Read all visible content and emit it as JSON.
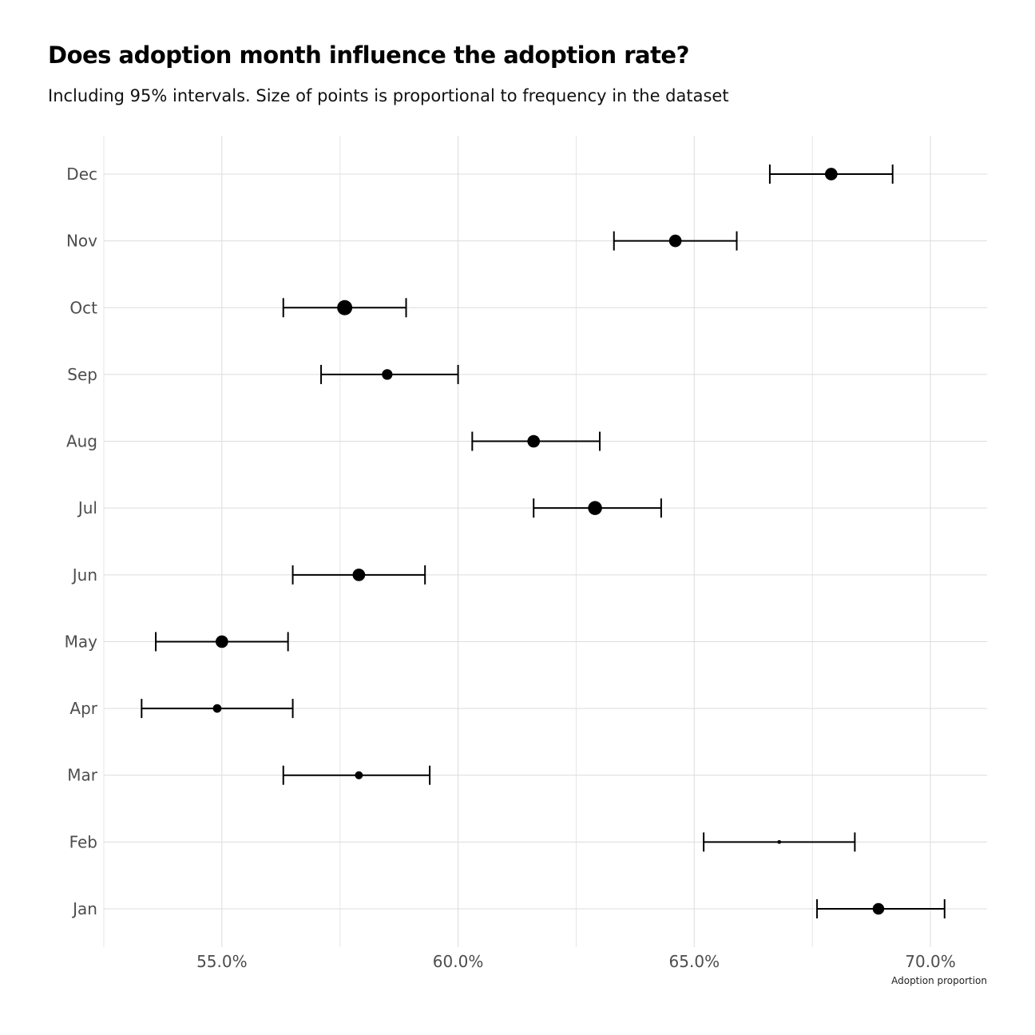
{
  "chart_data": {
    "type": "scatter",
    "title": "Does adoption month influence the adoption rate?",
    "subtitle": "Including 95% intervals. Size of points is proportional to frequency in the dataset",
    "xlabel": "Adoption proportion",
    "ylabel": "",
    "xlim": [
      0.525,
      0.712
    ],
    "x_ticks": [
      0.55,
      0.6,
      0.65,
      0.7
    ],
    "x_tick_labels": [
      "55.0%",
      "60.0%",
      "65.0%",
      "70.0%"
    ],
    "x_minor_ticks": [
      0.525,
      0.575,
      0.625,
      0.675
    ],
    "categories": [
      "Jan",
      "Feb",
      "Mar",
      "Apr",
      "May",
      "Jun",
      "Jul",
      "Aug",
      "Sep",
      "Oct",
      "Nov",
      "Dec"
    ],
    "grid": true,
    "legend": "none",
    "point_color": "#000000",
    "series": [
      {
        "estimate": [
          0.689,
          0.668,
          0.579,
          0.549,
          0.55,
          0.579,
          0.629,
          0.616,
          0.585,
          0.576,
          0.646,
          0.679
        ],
        "lower": [
          0.676,
          0.652,
          0.563,
          0.533,
          0.536,
          0.565,
          0.616,
          0.603,
          0.571,
          0.563,
          0.633,
          0.666
        ],
        "upper": [
          0.703,
          0.684,
          0.594,
          0.565,
          0.564,
          0.593,
          0.643,
          0.63,
          0.6,
          0.589,
          0.659,
          0.692
        ],
        "relative_frequency": [
          0.7,
          0.05,
          0.4,
          0.45,
          0.78,
          0.78,
          0.9,
          0.78,
          0.62,
          1.0,
          0.78,
          0.78
        ]
      }
    ]
  }
}
